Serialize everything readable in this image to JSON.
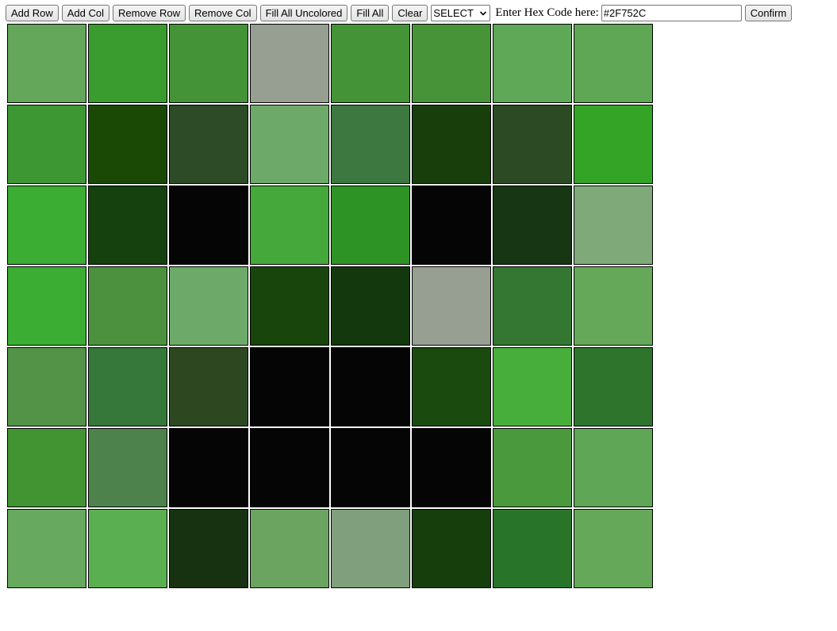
{
  "toolbar": {
    "add_row": "Add Row",
    "add_col": "Add Col",
    "remove_row": "Remove Row",
    "remove_col": "Remove Col",
    "fill_all_uncolored": "Fill All Uncolored",
    "fill_all": "Fill All",
    "clear": "Clear",
    "select_value": "SELECT",
    "hex_label": "Enter Hex Code here:",
    "hex_value": "#2F752C",
    "confirm": "Confirm"
  },
  "grid": {
    "rows": [
      [
        "#64A65A",
        "#3A9B2E",
        "#449336",
        "#979F93",
        "#449336",
        "#479337",
        "#5FA857",
        "#5FA655"
      ],
      [
        "#3D9733",
        "#1A4905",
        "#2C4B26",
        "#6DAA69",
        "#3D7840",
        "#183F0B",
        "#2C4B24",
        "#34A426"
      ],
      [
        "#3AAD32",
        "#14410D",
        "#050505",
        "#45A83A",
        "#2E9325",
        "#050505",
        "#173714",
        "#80A97A"
      ],
      [
        "#3AAD32",
        "#4C923E",
        "#6DAA69",
        "#17450C",
        "#13380D",
        "#979F93",
        "#347733",
        "#65A85A"
      ],
      [
        "#529347",
        "#36783A",
        "#2D4821",
        "#050505",
        "#050505",
        "#1A4A0E",
        "#48AE3B",
        "#2F742C"
      ],
      [
        "#429433",
        "#4D824D",
        "#050505",
        "#050505",
        "#050505",
        "#050505",
        "#4A9A3D",
        "#5FA657"
      ],
      [
        "#67A95F",
        "#5AB051",
        "#173210",
        "#6BA461",
        "#809F7C",
        "#153E0C",
        "#28752A",
        "#65A85A"
      ]
    ]
  }
}
